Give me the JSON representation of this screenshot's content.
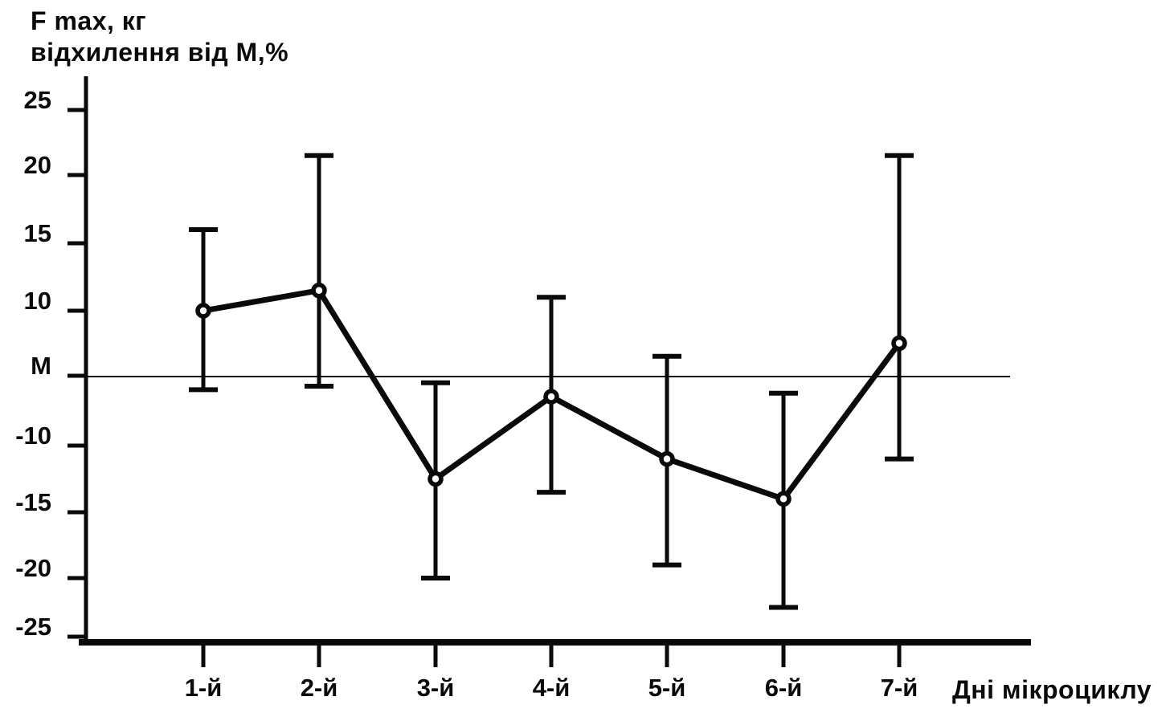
{
  "chart": {
    "title_line1": "F max, кг",
    "title_line2": "відхилення від М,%",
    "x_axis_title": "Дні мікроциклу",
    "y_axis_labels": [
      {
        "label": "25",
        "value": 25
      },
      {
        "label": "20",
        "value": 20
      },
      {
        "label": "15",
        "value": 15
      },
      {
        "label": "10",
        "value": 10
      },
      {
        "label": "М",
        "value": 0
      },
      {
        "label": "-10",
        "value": -10
      },
      {
        "label": "-15",
        "value": -15
      },
      {
        "label": "-20",
        "value": -20
      },
      {
        "label": "-25",
        "value": -25
      }
    ]
  },
  "chart_data": {
    "type": "line",
    "title": "F max, кг відхилення від М,%",
    "xlabel": "Дні мікроциклу",
    "ylabel": "відхилення від М, %",
    "categories": [
      "1-й",
      "2-й",
      "3-й",
      "4-й",
      "5-й",
      "6-й",
      "7-й"
    ],
    "series": [
      {
        "name": "F max відхилення від М, %",
        "values": [
          10,
          11.5,
          -12.5,
          -3,
          -11,
          -14,
          5
        ],
        "error_upper": [
          16,
          21.5,
          -1,
          11,
          3,
          -2.5,
          21.5
        ],
        "error_lower": [
          -2,
          -1.5,
          -20,
          -13.5,
          -19,
          -22.5,
          -11
        ]
      }
    ],
    "ylim": [
      -25,
      25
    ],
    "y_tick_labels": [
      "25",
      "20",
      "15",
      "10",
      "М",
      "-10",
      "-15",
      "-20",
      "-25"
    ],
    "baseline": {
      "value": 0,
      "label": "М"
    },
    "grid": false,
    "legend_position": "none",
    "marker": "open-circle",
    "line_color": "#000000",
    "background_color": "#ffffff"
  }
}
